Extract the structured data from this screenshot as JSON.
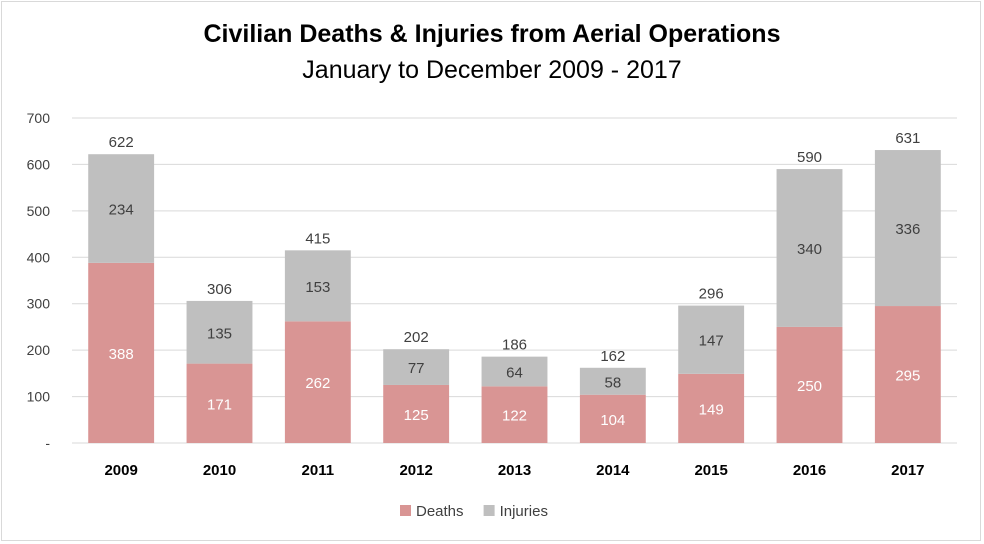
{
  "chart_data": {
    "type": "bar",
    "stacked": true,
    "title": "Civilian Deaths & Injuries from Aerial Operations",
    "subtitle": "January to December 2009 - 2017",
    "categories": [
      "2009",
      "2010",
      "2011",
      "2012",
      "2013",
      "2014",
      "2015",
      "2016",
      "2017"
    ],
    "series": [
      {
        "name": "Deaths",
        "color": "#d99594",
        "values": [
          388,
          171,
          262,
          125,
          122,
          104,
          149,
          250,
          295
        ]
      },
      {
        "name": "Injuries",
        "color": "#bfbfbf",
        "values": [
          234,
          135,
          153,
          77,
          64,
          58,
          147,
          340,
          336
        ]
      }
    ],
    "totals": [
      622,
      306,
      415,
      202,
      186,
      162,
      296,
      590,
      631
    ],
    "ylim": [
      0,
      700
    ],
    "yticks": [
      0,
      100,
      200,
      300,
      400,
      500,
      600,
      700
    ],
    "ytick_labels": [
      "-",
      "100",
      "200",
      "300",
      "400",
      "500",
      "600",
      "700"
    ],
    "grid": true,
    "legend_position": "bottom",
    "xlabel": "",
    "ylabel": ""
  }
}
